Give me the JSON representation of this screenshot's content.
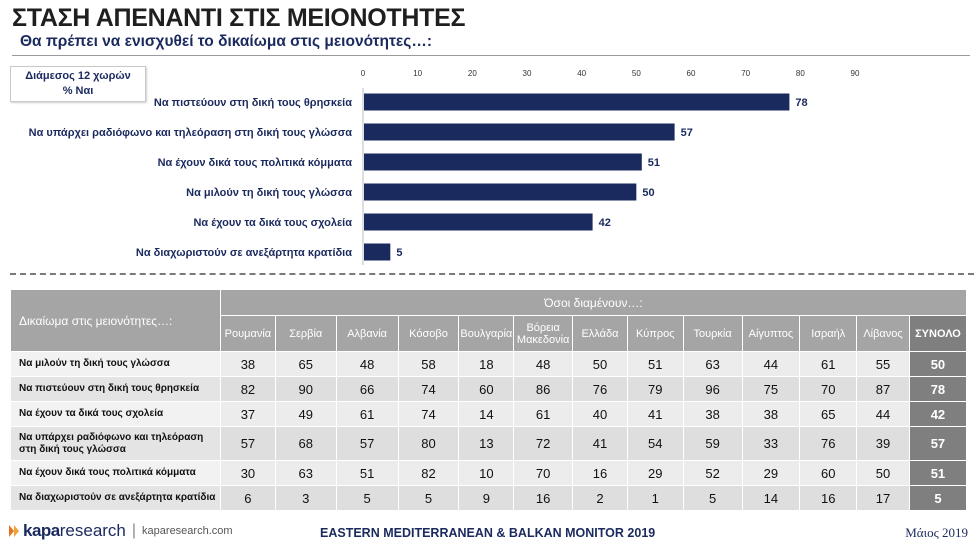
{
  "header": {
    "title": "ΣΤΑΣΗ ΑΠΕΝΑΝΤΙ ΣΤΙΣ ΜΕΙΟΝΟΤΗΤΕΣ",
    "subtitle": "Θα πρέπει να ενισχυθεί το δικαίωμα στις μειονότητες…:"
  },
  "legend": {
    "line1": "Διάμεσος 12 χωρών",
    "line2": "% Ναι"
  },
  "chart_data": {
    "type": "bar",
    "orientation": "horizontal",
    "categories": [
      "Να πιστεύουν στη δική τους θρησκεία",
      "Να υπάρχει ραδιόφωνο και τηλεόραση στη δική τους γλώσσα",
      "Να έχουν δικά τους πολιτικά κόμματα",
      "Να μιλούν τη δική τους γλώσσα",
      "Να έχουν τα δικά τους σχολεία",
      "Να διαχωριστούν σε ανεξάρτητα κρατίδια"
    ],
    "values": [
      78,
      57,
      51,
      50,
      42,
      5
    ],
    "xlim": [
      0,
      90
    ],
    "xticks": [
      0,
      10,
      20,
      30,
      40,
      50,
      60,
      70,
      80,
      90
    ],
    "axis_position": "top",
    "bar_color": "#1b2a5e",
    "grid": false
  },
  "table": {
    "corner_label": "Δικαίωμα στις μειονότητες…:",
    "group_header": "Όσοι διαμένουν…:",
    "columns": [
      "Ρουμανία",
      "Σερβία",
      "Αλβανία",
      "Κόσοβο",
      "Βουλγαρία",
      "Βόρεια Μακεδονία",
      "Ελλάδα",
      "Κύπρος",
      "Τουρκία",
      "Αίγυπτος",
      "Ισραήλ",
      "Λίβανος",
      "ΣΥΝΟΛΟ"
    ],
    "rows": [
      {
        "label": "Να μιλούν τη δική τους γλώσσα",
        "values": [
          "38",
          "65",
          "48",
          "58",
          "18",
          "48",
          "50",
          "51",
          "63",
          "44",
          "61",
          "55",
          "50"
        ]
      },
      {
        "label": "Να πιστεύουν στη δική τους θρησκεία",
        "values": [
          "82",
          "90",
          "66",
          "74",
          "60",
          "86",
          "76",
          "79",
          "96",
          "75",
          "70",
          "87",
          "78"
        ]
      },
      {
        "label": "Να έχουν τα δικά τους σχολεία",
        "values": [
          "37",
          "49",
          "61",
          "74",
          "14",
          "61",
          "40",
          "41",
          "38",
          "38",
          "65",
          "44",
          "42"
        ]
      },
      {
        "label": "Να υπάρχει ραδιόφωνο και τηλεόραση στη δική τους γλώσσα",
        "values": [
          "57",
          "68",
          "57",
          "80",
          "13",
          "72",
          "41",
          "54",
          "59",
          "33",
          "76",
          "39",
          "57"
        ]
      },
      {
        "label": "Να έχουν δικά τους πολιτικά κόμματα",
        "values": [
          "30",
          "63",
          "51",
          "82",
          "10",
          "70",
          "16",
          "29",
          "52",
          "29",
          "60",
          "50",
          "51"
        ]
      },
      {
        "label": "Να διαχωριστούν σε ανεξάρτητα κρατίδια",
        "values": [
          "6",
          "3",
          "5",
          "5",
          "9",
          "16",
          "2",
          "1",
          "5",
          "14",
          "16",
          "17",
          "5"
        ]
      }
    ],
    "total_color": "#7f7f7f",
    "header_color": "#a5a5a5"
  },
  "footer": {
    "logo_kapa": "kapa",
    "logo_research": "research",
    "separator": "|",
    "url": "kaparesearch.com",
    "center": "EASTERN MEDITERRANEAN & BALKAN MONITOR 2019",
    "date": "Μάιος 2019"
  }
}
